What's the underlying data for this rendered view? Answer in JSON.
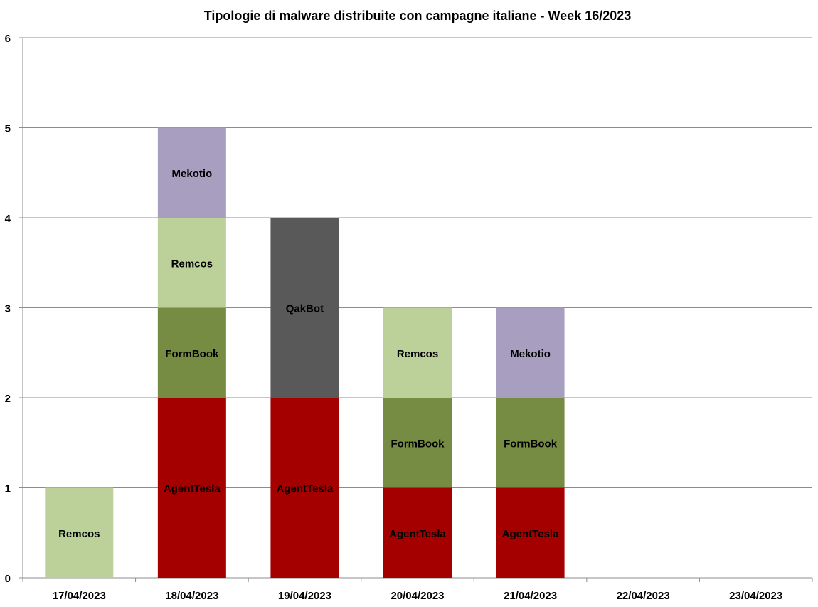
{
  "chart_data": {
    "type": "bar",
    "stacked": true,
    "title": "Tipologie di malware distribuite con campagne italiane - Week 16/2023",
    "xlabel": "",
    "ylabel": "",
    "ylim": [
      0,
      6
    ],
    "yticks": [
      "0",
      "1",
      "2",
      "3",
      "4",
      "5",
      "6"
    ],
    "grid": true,
    "legend": "none",
    "categories": [
      "17/04/2023",
      "18/04/2023",
      "19/04/2023",
      "20/04/2023",
      "21/04/2023",
      "22/04/2023",
      "23/04/2023"
    ],
    "series": [
      {
        "name": "AgentTesla",
        "color": "#a50000",
        "values": [
          0,
          2,
          2,
          1,
          1,
          0,
          0
        ]
      },
      {
        "name": "FormBook",
        "color": "#768c42",
        "values": [
          0,
          1,
          0,
          1,
          1,
          0,
          0
        ]
      },
      {
        "name": "QakBot",
        "color": "#595959",
        "values": [
          0,
          0,
          2,
          0,
          0,
          0,
          0
        ]
      },
      {
        "name": "Remcos",
        "color": "#bcd09a",
        "values": [
          1,
          1,
          0,
          1,
          0,
          0,
          0
        ]
      },
      {
        "name": "Mekotio",
        "color": "#a89ec0",
        "values": [
          0,
          1,
          0,
          0,
          1,
          0,
          0
        ]
      }
    ],
    "stack_order": [
      [
        "Remcos"
      ],
      [
        "AgentTesla",
        "FormBook",
        "Remcos",
        "Mekotio"
      ],
      [
        "AgentTesla",
        "QakBot"
      ],
      [
        "AgentTesla",
        "FormBook",
        "Remcos"
      ],
      [
        "AgentTesla",
        "FormBook",
        "Mekotio"
      ],
      [],
      []
    ]
  }
}
